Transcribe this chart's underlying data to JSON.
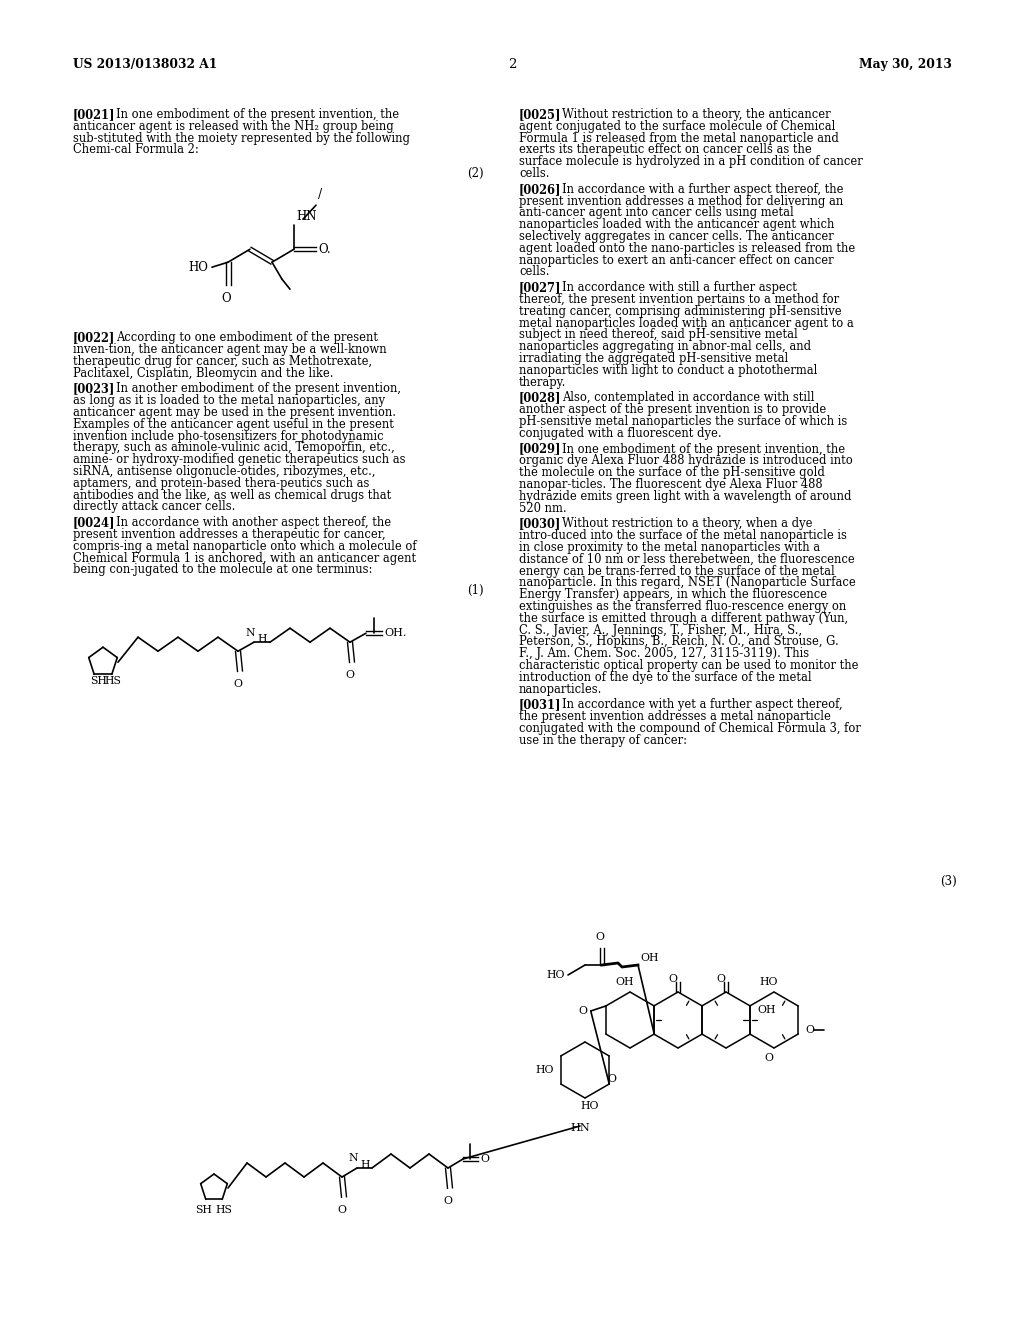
{
  "background_color": "#ffffff",
  "header_left": "US 2013/0138032 A1",
  "header_center": "2",
  "header_right": "May 30, 2013",
  "left_paragraphs": [
    {
      "tag": "[0021]",
      "text": "In one embodiment of the present invention, the anticancer agent is released with the NH₂ group being sub-stituted with the moiety represented by the following Chemi-cal Formula 2:"
    },
    {
      "tag": "[0022]",
      "text": "According to one embodiment of the present inven-tion, the anticancer agent may be a well-known therapeutic drug for cancer, such as Methotrexate, Paclitaxel, Cisplatin, Bleomycin and the like."
    },
    {
      "tag": "[0023]",
      "text": "In another embodiment of the present invention, as long as it is loaded to the metal nanoparticles, any anticancer agent may be used in the present invention. Examples of the anticancer agent useful in the present invention include pho-tosensitizers for photodynamic therapy, such as aminole-vulinic acid, Temoporfin, etc., amine- or hydroxy-modified genetic therapeutics such as siRNA, antisense oligonucle-otides, ribozymes, etc., aptamers, and protein-based thera-peutics such as antibodies and the like, as well as chemical drugs that directly attack cancer cells."
    },
    {
      "tag": "[0024]",
      "text": "In accordance with another aspect thereof, the present invention addresses a therapeutic for cancer, compris-ing a metal nanoparticle onto which a molecule of Chemical Formula 1 is anchored, with an anticancer agent being con-jugated to the molecule at one terminus:"
    }
  ],
  "right_paragraphs": [
    {
      "tag": "[0025]",
      "text": "Without restriction to a theory, the anticancer agent conjugated to the surface molecule of Chemical Formula 1 is released from the metal nanoparticle and exerts its therapeutic effect on cancer cells as the surface molecule is hydrolyzed in a pH condition of cancer cells."
    },
    {
      "tag": "[0026]",
      "text": "In accordance with a further aspect thereof, the present invention addresses a method for delivering an anti-cancer agent into cancer cells using metal nanoparticles loaded with the anticancer agent which selectively aggregates in cancer cells. The anticancer agent loaded onto the nano-particles is released from the nanoparticles to exert an anti-cancer effect on cancer cells."
    },
    {
      "tag": "[0027]",
      "text": "In accordance with still a further aspect thereof, the present invention pertains to a method for treating cancer, comprising administering pH-sensitive metal nanoparticles loaded with an anticancer agent to a subject in need thereof, said pH-sensitive metal nanoparticles aggregating in abnor-mal cells, and irradiating the aggregated pH-sensitive metal nanoparticles with light to conduct a photothermal therapy."
    },
    {
      "tag": "[0028]",
      "text": "Also, contemplated in accordance with still another aspect of the present invention is to provide pH-sensitive metal nanoparticles the surface of which is conjugated with a fluorescent dye."
    },
    {
      "tag": "[0029]",
      "text": "In one embodiment of the present invention, the organic dye Alexa Fluor 488 hydrazide is introduced into the molecule on the surface of the pH-sensitive gold nanopar-ticles. The fluorescent dye Alexa Fluor 488 hydrazide emits green light with a wavelength of around 520 nm."
    },
    {
      "tag": "[0030]",
      "text": "Without restriction to a theory, when a dye intro-duced into the surface of the metal nanoparticle is in close proximity to the metal nanoparticles with a distance of 10 nm or less therebetween, the fluorescence energy can be trans-ferred to the surface of the metal nanoparticle. In this regard, NSET (Nanoparticle Surface Energy Transfer) appears, in which the fluorescence extinguishes as the transferred fluo-rescence energy on the surface is emitted through a different pathway (Yun, C. S., Javier, A., Jennings, T., Fisher, M., Hira, S., Peterson, S., Hopkins, B., Reich, N. O., and Strouse, G. F., J. Am. Chem. Soc. 2005, 127, 3115-3119). This characteristic optical property can be used to monitor the introduction of the dye to the surface of the metal nanoparticles."
    },
    {
      "tag": "[0031]",
      "text": "In accordance with yet a further aspect thereof, the present invention addresses a metal nanoparticle conjugated with the compound of Chemical Formula 3, for use in the therapy of cancer:"
    }
  ]
}
